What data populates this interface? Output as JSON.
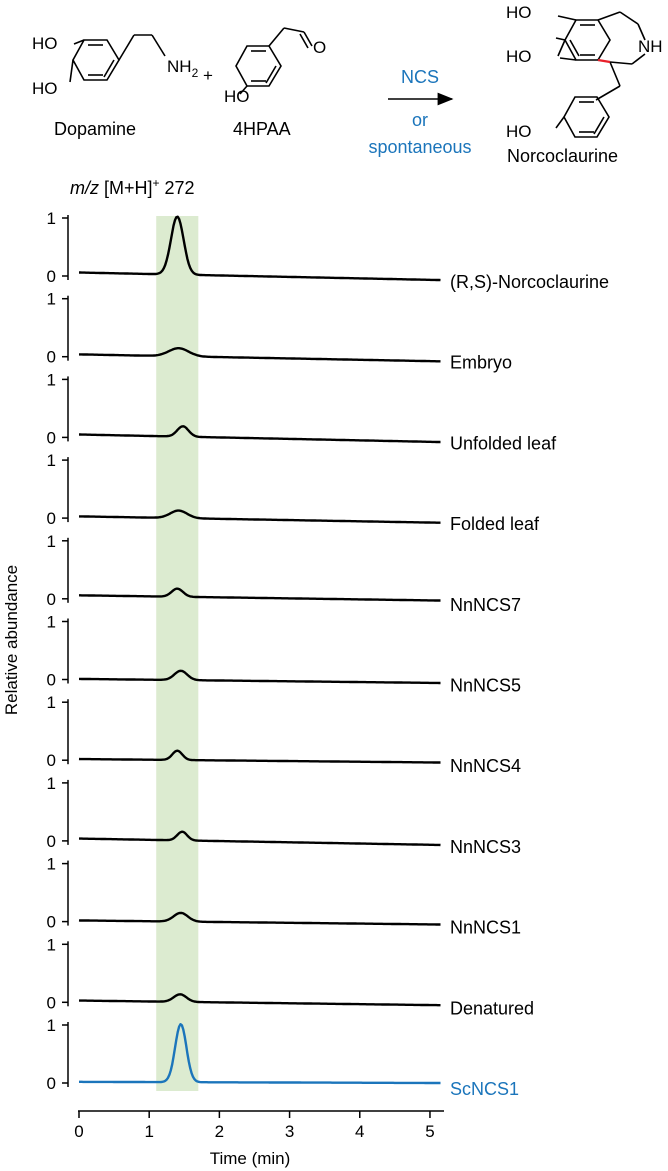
{
  "scheme": {
    "dopamine": {
      "name": "Dopamine",
      "oh1": "HO",
      "oh2": "HO",
      "amine": "NH",
      "amine_sub": "2"
    },
    "plus": "+",
    "hpaa": {
      "name": "4HPAA",
      "oh": "HO",
      "carbonyl": "O"
    },
    "arrow": {
      "top": "NCS",
      "mid": "or",
      "bottom": "spontaneous"
    },
    "product": {
      "name": "Norcoclaurine",
      "oh1": "HO",
      "oh2": "HO",
      "oh3": "HO",
      "nh": "NH"
    }
  },
  "colors": {
    "trace": "#000000",
    "highlight_trace": "#1b75bb",
    "shade": "#dcebd0",
    "bond_highlight": "#e8202a"
  },
  "chart_data": {
    "type": "line",
    "mass_label": {
      "italic": "m/z",
      "text": " [M+H]",
      "sup": "+",
      "value": " 272"
    },
    "xlabel": "Time (min)",
    "ylabel": "Relative abundance",
    "xlim": [
      0,
      5.2
    ],
    "xticks": [
      0,
      1,
      2,
      3,
      4,
      5
    ],
    "ylim": [
      0,
      1
    ],
    "yticks": [
      0,
      1
    ],
    "shaded_region": [
      1.1,
      1.7
    ],
    "series": [
      {
        "name": "(R,S)-Norcoclaurine",
        "peak_x": 1.4,
        "peak_height": 1.0,
        "peak_width": 0.09,
        "start": 0.06,
        "end": -0.07,
        "highlight": false
      },
      {
        "name": "Embryo",
        "peak_x": 1.42,
        "peak_height": 0.14,
        "peak_width": 0.14,
        "start": 0.04,
        "end": -0.08,
        "highlight": false
      },
      {
        "name": "Unfolded leaf",
        "peak_x": 1.48,
        "peak_height": 0.18,
        "peak_width": 0.08,
        "start": 0.05,
        "end": -0.08,
        "highlight": false
      },
      {
        "name": "Folded leaf",
        "peak_x": 1.42,
        "peak_height": 0.13,
        "peak_width": 0.12,
        "start": 0.03,
        "end": -0.08,
        "highlight": false
      },
      {
        "name": "NnNCS7",
        "peak_x": 1.4,
        "peak_height": 0.14,
        "peak_width": 0.08,
        "start": 0.06,
        "end": -0.03,
        "highlight": false
      },
      {
        "name": "NnNCS5",
        "peak_x": 1.45,
        "peak_height": 0.16,
        "peak_width": 0.09,
        "start": 0.01,
        "end": -0.06,
        "highlight": false
      },
      {
        "name": "NnNCS4",
        "peak_x": 1.4,
        "peak_height": 0.16,
        "peak_width": 0.07,
        "start": 0.02,
        "end": -0.04,
        "highlight": false
      },
      {
        "name": "NnNCS3",
        "peak_x": 1.47,
        "peak_height": 0.15,
        "peak_width": 0.07,
        "start": 0.04,
        "end": -0.07,
        "highlight": false
      },
      {
        "name": "NnNCS1",
        "peak_x": 1.45,
        "peak_height": 0.15,
        "peak_width": 0.1,
        "start": 0.02,
        "end": -0.05,
        "highlight": false
      },
      {
        "name": "Denatured",
        "peak_x": 1.44,
        "peak_height": 0.13,
        "peak_width": 0.09,
        "start": 0.03,
        "end": -0.05,
        "highlight": false
      },
      {
        "name": "ScNCS1",
        "peak_x": 1.45,
        "peak_height": 1.0,
        "peak_width": 0.08,
        "start": 0.02,
        "end": 0.0,
        "highlight": true
      }
    ]
  }
}
